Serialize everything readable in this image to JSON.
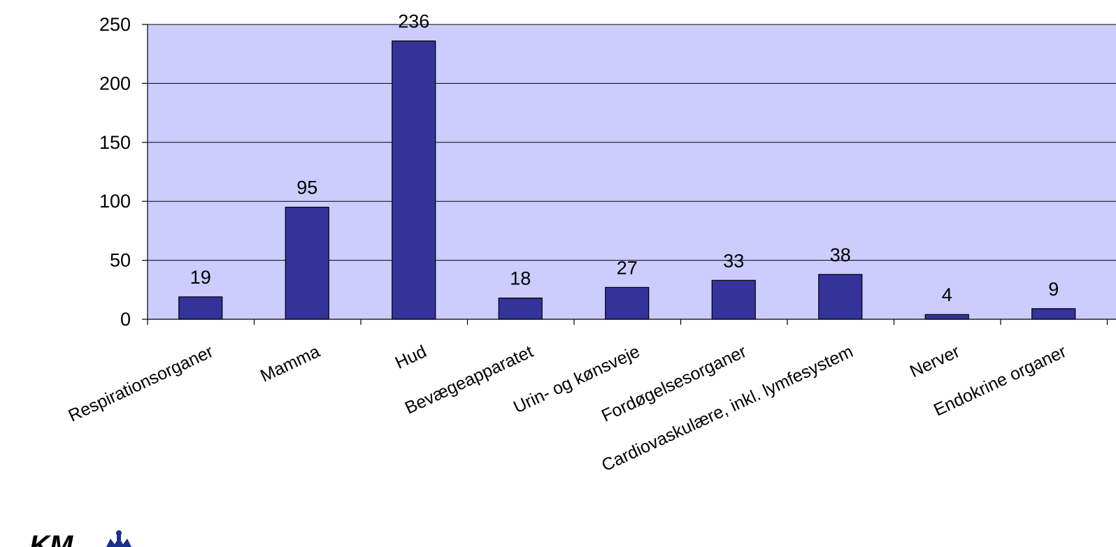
{
  "chart_data": {
    "type": "bar",
    "categories": [
      "Respirationsorganer",
      "Mamma",
      "Hud",
      "Bevægeapparatet",
      "Urin- og kønsveje",
      "Fordøgelsesorganer",
      "Cardiovaskulære, inkl. lymfesystem",
      "Nerver",
      "Endokrine organer"
    ],
    "values": [
      19,
      95,
      236,
      18,
      27,
      33,
      38,
      4,
      9
    ],
    "ylim": [
      0,
      250
    ],
    "yticks": [
      0,
      50,
      100,
      150,
      200,
      250
    ],
    "grid": true,
    "legend": "none",
    "data_labels": true
  },
  "colors": {
    "plot_background": "#ccccff",
    "bar_fill": "#333399",
    "bar_stroke": "#000000",
    "gridline": "#000000",
    "logo": "#1a2f8c"
  },
  "logo": {
    "text": "KM",
    "icon": "crown-icon"
  }
}
